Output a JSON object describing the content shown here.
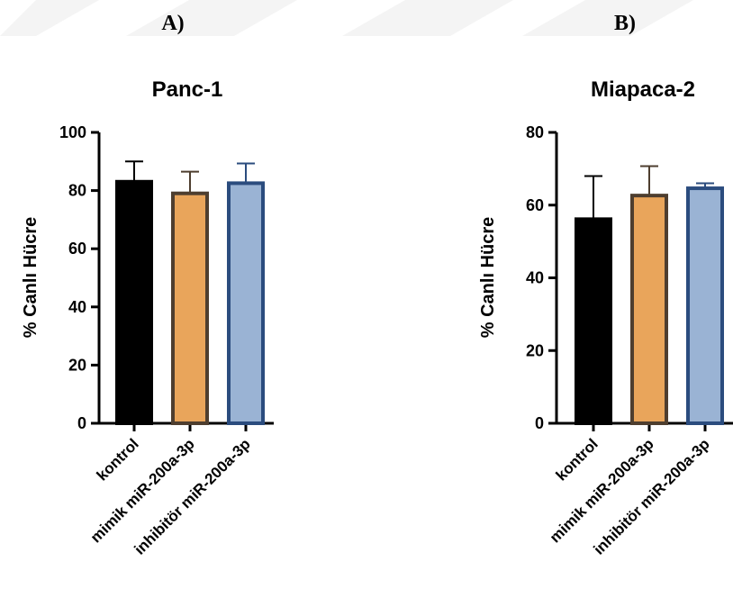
{
  "panels": [
    {
      "label": "A)"
    },
    {
      "label": "B)"
    }
  ],
  "chart_data": [
    {
      "type": "bar",
      "title": "Panc-1",
      "ylabel": "% Canlı Hücre",
      "xlabel": "",
      "ylim": [
        0,
        100
      ],
      "yticks": [
        0,
        20,
        40,
        60,
        80,
        100
      ],
      "categories": [
        "kontrol",
        "mimik miR-200a-3p",
        "inhibitör miR-200a-3p"
      ],
      "values": [
        83.5,
        79.5,
        83
      ],
      "errors": [
        6.5,
        7,
        6.3
      ],
      "fill_colors": [
        "#000000",
        "#e9a55b",
        "#9ab3d4"
      ],
      "edge_colors": [
        "#000000",
        "#4e3e2f",
        "#2b4c7e"
      ]
    },
    {
      "type": "bar",
      "title": "Miapaca-2",
      "ylabel": "% Canlı Hücre",
      "xlabel": "",
      "ylim": [
        0,
        80
      ],
      "yticks": [
        0,
        20,
        40,
        60,
        80
      ],
      "categories": [
        "kontrol",
        "mimik miR-200a-3p",
        "inhibitör miR-200a-3p"
      ],
      "values": [
        56.5,
        63,
        65
      ],
      "errors": [
        11.5,
        7.7,
        1
      ],
      "fill_colors": [
        "#000000",
        "#e9a55b",
        "#9ab3d4"
      ],
      "edge_colors": [
        "#000000",
        "#4e3e2f",
        "#2b4c7e"
      ]
    }
  ]
}
